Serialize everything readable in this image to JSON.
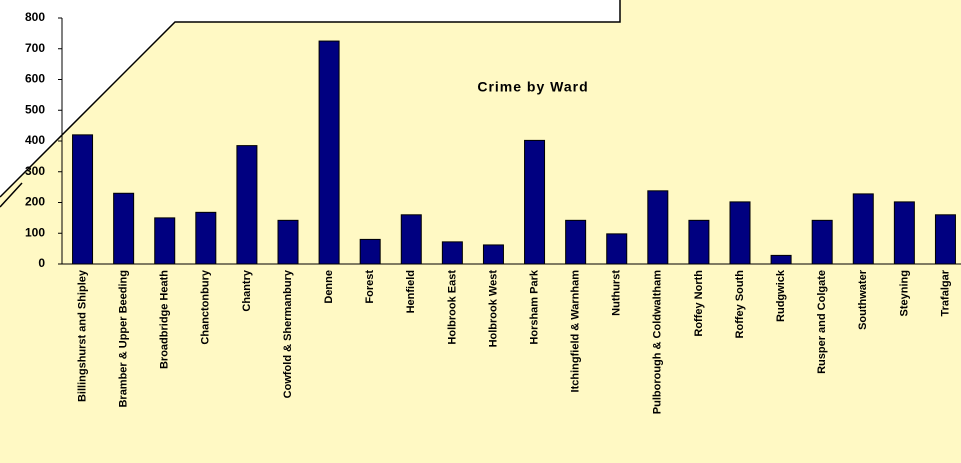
{
  "chart_data": {
    "type": "bar",
    "title": "Crime by Ward",
    "categories": [
      "Billingshurst and Shipley",
      "Bramber & Upper Beeding",
      "Broadbridge Heath",
      "Chanctonbury",
      "Chantry",
      "Cowfold & Shermanbury",
      "Denne",
      "Forest",
      "Henfield",
      "Holbrook East",
      "Holbrook West",
      "Horsham Park",
      "Itchingfield & Warnham",
      "Nuthurst",
      "Pulborough & Coldwaltham",
      "Roffey North",
      "Roffey South",
      "Rudgwick",
      "Rusper and Colgate",
      "Southwater",
      "Steyning",
      "Trafalgar"
    ],
    "values": [
      420,
      230,
      150,
      168,
      385,
      142,
      725,
      80,
      160,
      72,
      62,
      402,
      142,
      98,
      238,
      142,
      202,
      28,
      142,
      228,
      202,
      160
    ],
    "color": "#000080",
    "ylim": [
      0,
      800
    ],
    "yticks": [
      0,
      100,
      200,
      300,
      400,
      500,
      600,
      700,
      800
    ],
    "grid": false
  }
}
